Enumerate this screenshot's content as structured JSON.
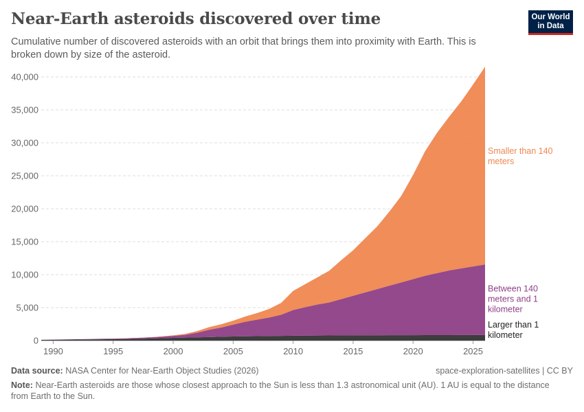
{
  "header": {
    "title": "Near-Earth asteroids discovered over time",
    "subtitle": "Cumulative number of discovered asteroids with an orbit that brings them into proximity with Earth. This is broken down by size of the asteroid.",
    "logo_line1": "Our World",
    "logo_line2": "in Data"
  },
  "footer": {
    "source_label": "Data source:",
    "source_text": "NASA Center for Near-Earth Object Studies (2026)",
    "credit": "space-exploration-satellites | CC BY",
    "note_label": "Note:",
    "note_text": "Near-Earth asteroids are those whose closest approach to the Sun is less than 1.3 astronomical unit (AU). 1 AU is equal to the distance from Earth to the Sun."
  },
  "colors": {
    "large": "#3d3d3d",
    "medium": "#8e3f86",
    "small": "#ef8750",
    "grid": "#dddddd",
    "axis": "#999999"
  },
  "chart_data": {
    "type": "area",
    "stacked": true,
    "x": [
      1989,
      1990,
      1991,
      1992,
      1993,
      1994,
      1995,
      1996,
      1997,
      1998,
      1999,
      2000,
      2001,
      2002,
      2003,
      2004,
      2005,
      2006,
      2007,
      2008,
      2009,
      2010,
      2011,
      2012,
      2013,
      2014,
      2015,
      2016,
      2017,
      2018,
      2019,
      2020,
      2021,
      2022,
      2023,
      2024,
      2025,
      2026
    ],
    "series": [
      {
        "name": "Larger than 1 kilometer",
        "label_lines": [
          "Larger than 1",
          "kilometer"
        ],
        "color_key": "large",
        "values": [
          100,
          120,
          140,
          160,
          180,
          200,
          220,
          240,
          270,
          310,
          360,
          410,
          450,
          500,
          540,
          580,
          620,
          650,
          680,
          700,
          720,
          740,
          760,
          770,
          780,
          790,
          800,
          805,
          810,
          815,
          820,
          825,
          830,
          835,
          840,
          845,
          850,
          855
        ]
      },
      {
        "name": "Between 140 meters and 1 kilometer",
        "label_lines": [
          "Between 140",
          "meters and 1",
          "kilometer"
        ],
        "color_key": "medium",
        "values": [
          20,
          30,
          40,
          50,
          60,
          70,
          80,
          100,
          130,
          170,
          220,
          300,
          420,
          700,
          1100,
          1400,
          1800,
          2200,
          2500,
          2800,
          3200,
          3900,
          4300,
          4700,
          5000,
          5500,
          6000,
          6500,
          7000,
          7500,
          8000,
          8500,
          9000,
          9400,
          9800,
          10100,
          10400,
          10700
        ]
      },
      {
        "name": "Smaller than 140 meters",
        "label_lines": [
          "Smaller than 140",
          "meters"
        ],
        "color_key": "small",
        "values": [
          0,
          0,
          0,
          0,
          0,
          0,
          0,
          10,
          20,
          30,
          50,
          80,
          150,
          250,
          400,
          500,
          600,
          800,
          1000,
          1300,
          1800,
          2900,
          3500,
          4100,
          4800,
          5900,
          6900,
          8200,
          9500,
          11200,
          13100,
          15800,
          18900,
          21300,
          23300,
          25300,
          27600,
          30000
        ]
      }
    ],
    "x_ticks": [
      1990,
      1995,
      2000,
      2005,
      2010,
      2015,
      2020,
      2025
    ],
    "y_ticks": [
      0,
      5000,
      10000,
      15000,
      20000,
      25000,
      30000,
      35000,
      40000
    ],
    "y_tick_labels": [
      "0",
      "5,000",
      "10,000",
      "15,000",
      "20,000",
      "25,000",
      "30,000",
      "35,000",
      "40,000"
    ],
    "xlim": [
      1989,
      2026
    ],
    "ylim": [
      0,
      40000
    ],
    "grid": "horizontal dashed",
    "legend": "inline labels at right"
  }
}
